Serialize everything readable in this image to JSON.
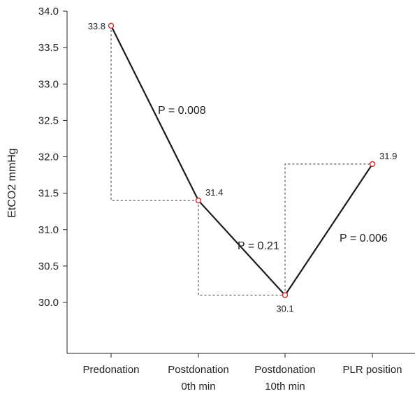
{
  "chart_data": {
    "type": "line",
    "ylabel": "EtCO2 mmHg",
    "xlabel": "",
    "ylim": [
      29.3,
      34.0
    ],
    "yticks": [
      "30.0",
      "30.5",
      "31.0",
      "31.5",
      "32.0",
      "32.5",
      "33.0",
      "33.5",
      "34.0"
    ],
    "categories": [
      [
        "Predonation"
      ],
      [
        "Postdonation",
        "0th min"
      ],
      [
        "Postdonation",
        "10th min"
      ],
      [
        "PLR position"
      ]
    ],
    "series": [
      {
        "values": [
          33.8,
          31.4,
          30.1,
          31.9
        ],
        "labels": [
          "33.8",
          "31.4",
          "30.1",
          "31.9"
        ],
        "line_color": "#1a1a1a",
        "marker_color": "#d62728"
      }
    ],
    "annotations": [
      {
        "text": "P = 0.008",
        "between": [
          0,
          1
        ]
      },
      {
        "text": "P = 0.21",
        "between": [
          1,
          2
        ]
      },
      {
        "text": "P = 0.006",
        "between": [
          2,
          3
        ]
      }
    ],
    "grid": false
  }
}
